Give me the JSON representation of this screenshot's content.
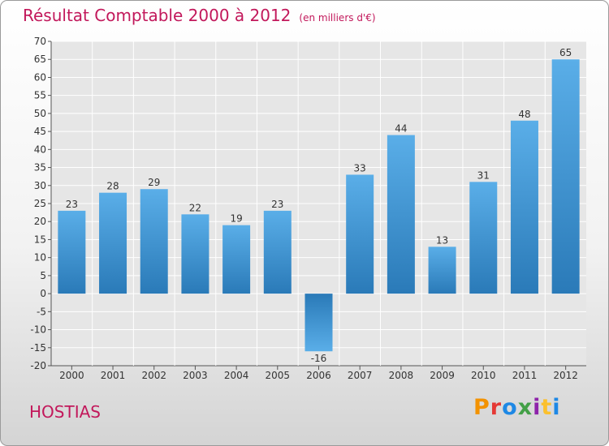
{
  "chart_data": {
    "type": "bar",
    "title": "Résultat Comptable 2000 à 2012",
    "subtitle": "(en milliers d'€)",
    "categories": [
      "2000",
      "2001",
      "2002",
      "2003",
      "2004",
      "2005",
      "2006",
      "2007",
      "2008",
      "2009",
      "2010",
      "2011",
      "2012"
    ],
    "values": [
      23,
      28,
      29,
      22,
      19,
      23,
      -16,
      33,
      44,
      13,
      31,
      48,
      65
    ],
    "ylim": [
      -20,
      70
    ],
    "ytick_step": 5,
    "grid": true,
    "xlabel": "",
    "ylabel": ""
  },
  "footer": {
    "commune": "HOSTIAS",
    "brand": "Proxiti"
  },
  "colors": {
    "title": "#c2185b",
    "bar_light": "#5aaee8",
    "bar_dark": "#2a7ab8",
    "grid": "#ffffff",
    "brand_letters": [
      "#f39200",
      "#e53935",
      "#1e88e5",
      "#43a047",
      "#8e24aa",
      "#fbc02d",
      "#1e88e5"
    ]
  }
}
